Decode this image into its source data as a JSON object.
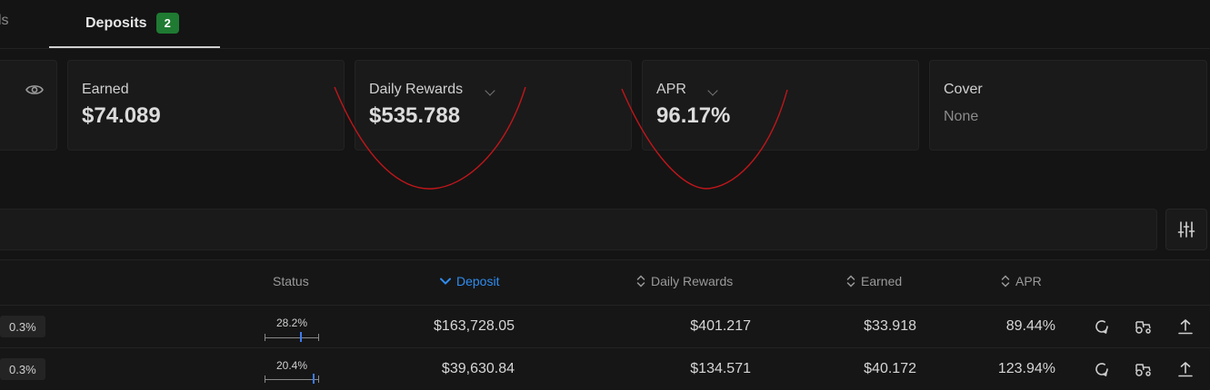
{
  "tabs": {
    "partial_label": "ls",
    "deposits_label": "Deposits",
    "deposits_count": "2"
  },
  "cards": {
    "earned": {
      "label": "Earned",
      "value": "$74.089"
    },
    "daily_rewards": {
      "label": "Daily Rewards",
      "value": "$535.788"
    },
    "apr": {
      "label": "APR",
      "value": "96.17%"
    },
    "cover": {
      "label": "Cover",
      "value": "None"
    }
  },
  "table": {
    "headers": {
      "status": "Status",
      "deposit": "Deposit",
      "daily_rewards": "Daily Rewards",
      "earned": "Earned",
      "apr": "APR"
    },
    "rows": [
      {
        "fee": "0.3%",
        "status": "28.2%",
        "status_fraction": 0.282,
        "deposit": "$163,728.05",
        "daily_rewards": "$401.217",
        "earned": "$33.918",
        "apr": "89.44%"
      },
      {
        "fee": "0.3%",
        "status": "20.4%",
        "status_fraction": 0.204,
        "deposit": "$39,630.84",
        "daily_rewards": "$134.571",
        "earned": "$40.172",
        "apr": "123.94%"
      }
    ]
  },
  "colors": {
    "accent": "#2f8cf0",
    "badge_green": "#1f7a32",
    "annotation_red": "#c0161a"
  },
  "icons": {
    "visibility": "eye-icon",
    "filter": "sliders-icon",
    "row_actions": [
      "refresh-icon",
      "tractor-icon",
      "upload-icon"
    ]
  }
}
